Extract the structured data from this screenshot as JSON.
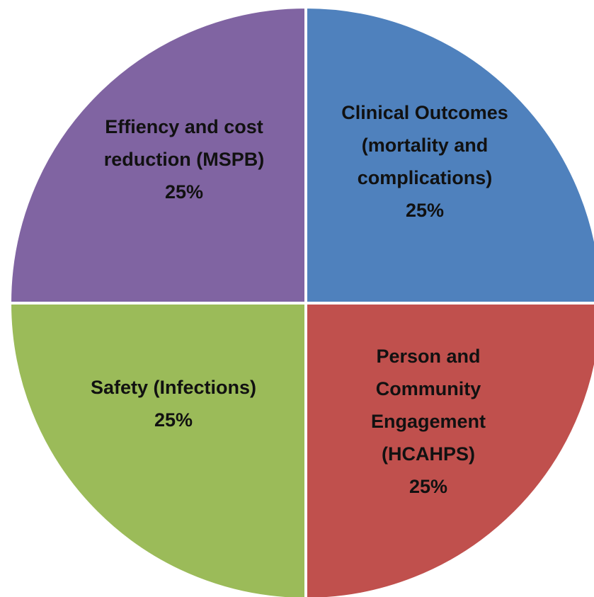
{
  "chart_data": {
    "type": "pie",
    "categories": [
      "Clinical Outcomes (mortality and complications)",
      "Person and Community Engagement (HCAHPS)",
      "Safety (Infections)",
      "Effiency and cost reduction (MSPB)"
    ],
    "values": [
      25,
      25,
      25,
      25
    ],
    "value_labels": [
      "25%",
      "25%",
      "25%",
      "25%"
    ],
    "colors": [
      "#4f81bd",
      "#c0504d",
      "#9bbb59",
      "#8064a2"
    ]
  }
}
